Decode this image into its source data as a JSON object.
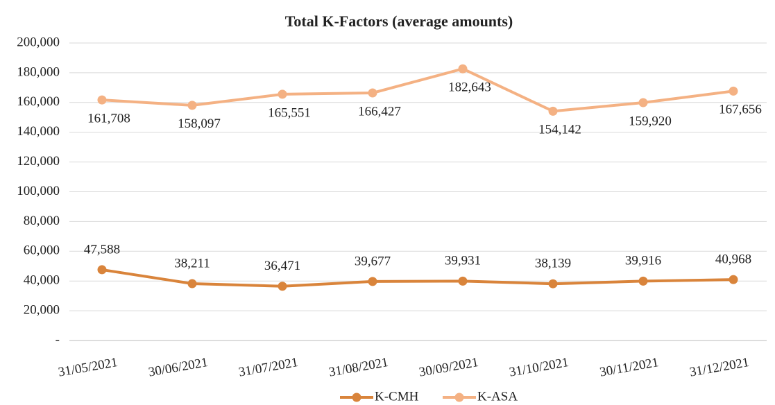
{
  "chart_data": {
    "type": "line",
    "title": "Total K-Factors (average amounts)",
    "categories": [
      "31/05/2021",
      "30/06/2021",
      "31/07/2021",
      "31/08/2021",
      "30/09/2021",
      "31/10/2021",
      "30/11/2021",
      "31/12/2021"
    ],
    "series": [
      {
        "name": "K-CMH",
        "color": "#d9843b",
        "values": [
          47588,
          38211,
          36471,
          39677,
          39931,
          38139,
          39916,
          40968
        ],
        "value_labels": [
          "47,588",
          "38,211",
          "36,471",
          "39,677",
          "39,931",
          "38,139",
          "39,916",
          "40,968"
        ]
      },
      {
        "name": "K-ASA",
        "color": "#f4b183",
        "values": [
          161708,
          158097,
          165551,
          166427,
          182643,
          154142,
          159920,
          167656
        ],
        "value_labels": [
          "161,708",
          "158,097",
          "165,551",
          "166,427",
          "182,643",
          "154,142",
          "159,920",
          "167,656"
        ]
      }
    ],
    "ylim": [
      0,
      200000
    ],
    "yticks": [
      {
        "value": 0,
        "label": "-"
      },
      {
        "value": 20000,
        "label": "20,000"
      },
      {
        "value": 40000,
        "label": "40,000"
      },
      {
        "value": 60000,
        "label": "60,000"
      },
      {
        "value": 80000,
        "label": "80,000"
      },
      {
        "value": 100000,
        "label": "100,000"
      },
      {
        "value": 120000,
        "label": "120,000"
      },
      {
        "value": 140000,
        "label": "140,000"
      },
      {
        "value": 160000,
        "label": "160,000"
      },
      {
        "value": 180000,
        "label": "180,000"
      },
      {
        "value": 200000,
        "label": "200,000"
      }
    ],
    "grid": true,
    "legend": "bottom"
  }
}
